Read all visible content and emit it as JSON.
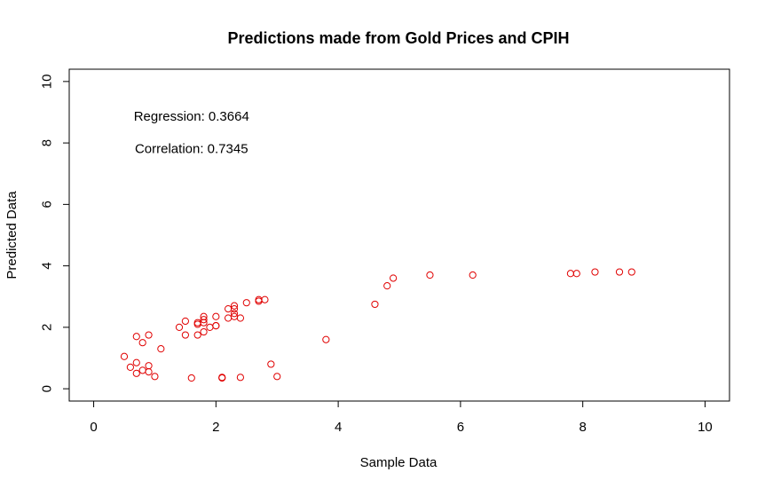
{
  "chart_data": {
    "type": "scatter",
    "title": "Predictions made from Gold Prices and CPIH",
    "xlabel": "Sample Data",
    "ylabel": "Predicted Data",
    "xlim": [
      -0.4,
      10.4
    ],
    "ylim": [
      -0.4,
      10.4
    ],
    "xticks": [
      0,
      2,
      4,
      6,
      8,
      10
    ],
    "yticks": [
      0,
      2,
      4,
      6,
      8,
      10
    ],
    "grid": false,
    "point_color": "#e00000",
    "annotations": [
      {
        "text": "Regression: 0.3664",
        "x": 1.6,
        "y": 8.85
      },
      {
        "text": "Correlation: 0.7345",
        "x": 1.6,
        "y": 7.8
      }
    ],
    "x": [
      0.5,
      0.6,
      0.7,
      0.7,
      0.7,
      0.8,
      0.8,
      0.9,
      0.9,
      0.9,
      1.0,
      1.1,
      1.4,
      1.5,
      1.5,
      1.6,
      1.7,
      1.7,
      1.7,
      1.8,
      1.8,
      1.8,
      1.8,
      1.9,
      2.0,
      2.0,
      2.0,
      2.1,
      2.1,
      2.2,
      2.2,
      2.3,
      2.3,
      2.3,
      2.3,
      2.4,
      2.4,
      2.5,
      2.7,
      2.7,
      2.8,
      2.9,
      3.0,
      3.8,
      4.6,
      4.8,
      4.9,
      5.5,
      6.2,
      7.8,
      7.9,
      8.2,
      8.6,
      8.8
    ],
    "y": [
      1.05,
      0.7,
      0.85,
      0.5,
      1.7,
      1.5,
      0.6,
      1.75,
      0.75,
      0.55,
      0.4,
      1.3,
      2.0,
      2.2,
      1.75,
      0.35,
      2.1,
      2.15,
      1.75,
      2.15,
      2.25,
      2.35,
      1.85,
      2.0,
      2.05,
      2.05,
      2.35,
      0.35,
      0.37,
      2.3,
      2.6,
      2.45,
      2.35,
      2.6,
      2.7,
      2.3,
      0.37,
      2.8,
      2.85,
      2.9,
      2.9,
      0.8,
      0.4,
      1.6,
      2.75,
      3.35,
      3.6,
      3.7,
      3.7,
      3.75,
      3.75,
      3.8,
      3.8,
      3.8
    ]
  }
}
